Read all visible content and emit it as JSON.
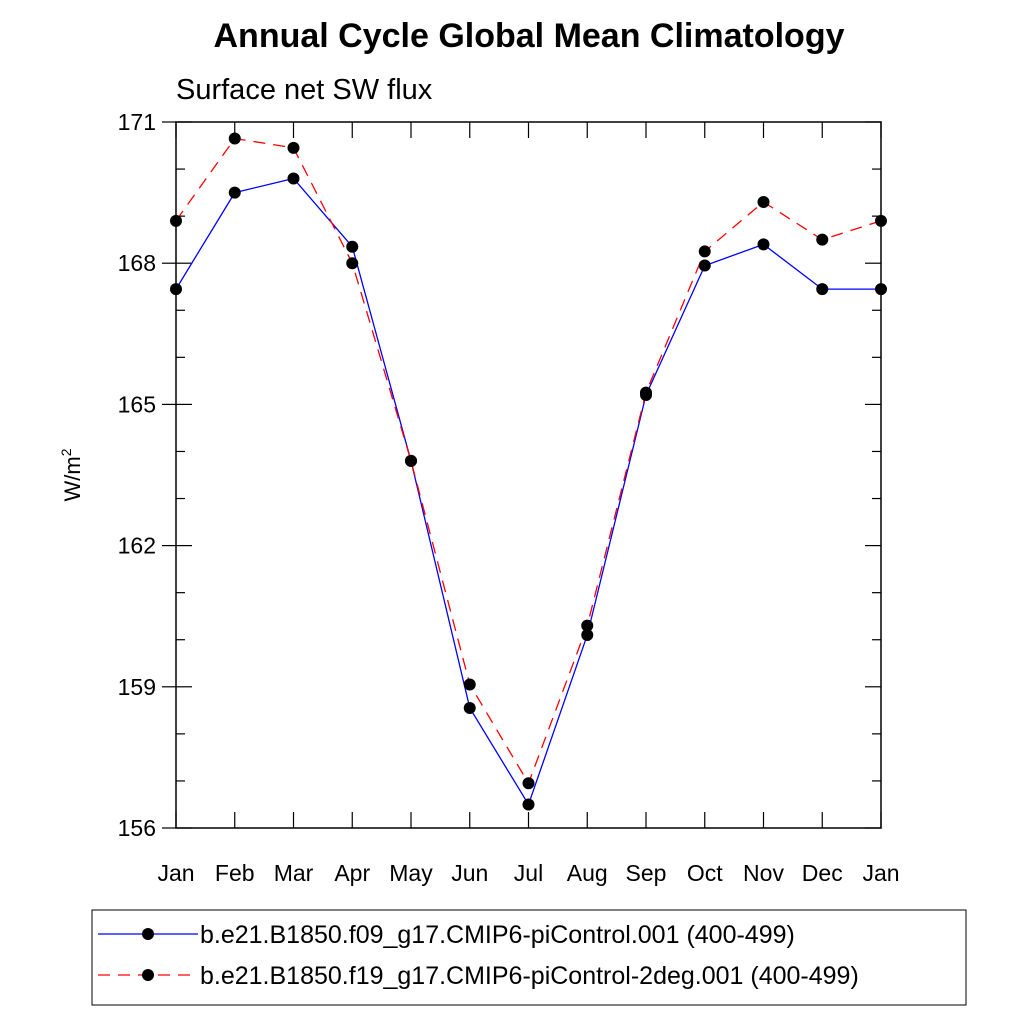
{
  "chart_data": {
    "type": "line",
    "title": "Annual Cycle Global Mean Climatology",
    "subtitle": "Surface net SW flux",
    "ylabel_base": "W/m",
    "ylabel_sup": "2",
    "ylim": [
      156,
      171
    ],
    "y_ticks": [
      "156",
      "159",
      "162",
      "165",
      "168",
      "171"
    ],
    "y_tick_values": [
      156,
      159,
      162,
      165,
      168,
      171
    ],
    "categories": [
      "Jan",
      "Feb",
      "Mar",
      "Apr",
      "May",
      "Jun",
      "Jul",
      "Aug",
      "Sep",
      "Oct",
      "Nov",
      "Dec",
      "Jan"
    ],
    "series": [
      {
        "name": "b.e21.B1850.f09_g17.CMIP6-piControl.001 (400-499)",
        "color": "#0000ff",
        "style": "solid",
        "values": [
          167.45,
          169.5,
          169.8,
          168.35,
          163.8,
          158.55,
          156.5,
          160.1,
          165.2,
          167.95,
          168.4,
          167.45,
          167.45
        ]
      },
      {
        "name": "b.e21.B1850.f19_g17.CMIP6-piControl-2deg.001 (400-499)",
        "color": "#ff0000",
        "style": "dashed",
        "values": [
          168.9,
          170.65,
          170.45,
          168.0,
          163.8,
          159.05,
          156.95,
          160.3,
          165.25,
          168.25,
          169.3,
          168.5,
          168.9
        ]
      }
    ]
  }
}
